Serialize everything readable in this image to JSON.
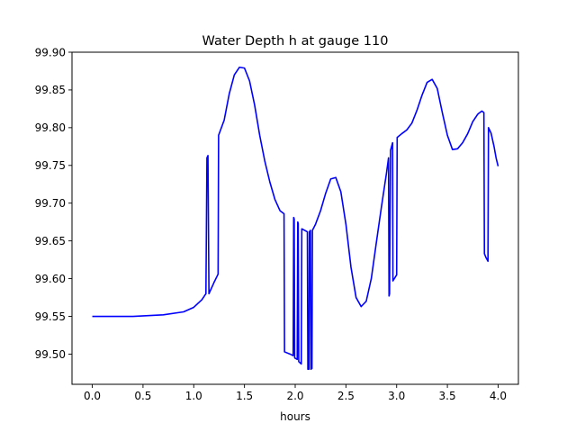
{
  "chart_data": {
    "type": "line",
    "title": "Water Depth h at gauge 110",
    "xlabel": "hours",
    "ylabel": "",
    "xlim": [
      -0.2,
      4.2
    ],
    "ylim": [
      99.46,
      99.9
    ],
    "xticks": [
      0.0,
      0.5,
      1.0,
      1.5,
      2.0,
      2.5,
      3.0,
      3.5,
      4.0
    ],
    "xtick_labels": [
      "0.0",
      "0.5",
      "1.0",
      "1.5",
      "2.0",
      "2.5",
      "3.0",
      "3.5",
      "4.0"
    ],
    "yticks": [
      99.5,
      99.55,
      99.6,
      99.65,
      99.7,
      99.75,
      99.8,
      99.85,
      99.9
    ],
    "ytick_labels": [
      "99.50",
      "99.55",
      "99.60",
      "99.65",
      "99.70",
      "99.75",
      "99.80",
      "99.85",
      "99.90"
    ],
    "grid": false,
    "legend": "none",
    "series": [
      {
        "color": "#0000ff",
        "points": [
          [
            0.0,
            99.55
          ],
          [
            0.4,
            99.55
          ],
          [
            0.7,
            99.552
          ],
          [
            0.9,
            99.556
          ],
          [
            1.0,
            99.562
          ],
          [
            1.08,
            99.572
          ],
          [
            1.12,
            99.58
          ],
          [
            1.13,
            99.76
          ],
          [
            1.14,
            99.763
          ],
          [
            1.15,
            99.58
          ],
          [
            1.2,
            99.595
          ],
          [
            1.24,
            99.606
          ],
          [
            1.245,
            99.79
          ],
          [
            1.3,
            99.81
          ],
          [
            1.35,
            99.845
          ],
          [
            1.4,
            99.87
          ],
          [
            1.45,
            99.88
          ],
          [
            1.5,
            99.879
          ],
          [
            1.55,
            99.862
          ],
          [
            1.6,
            99.83
          ],
          [
            1.65,
            99.79
          ],
          [
            1.7,
            99.756
          ],
          [
            1.75,
            99.728
          ],
          [
            1.8,
            99.705
          ],
          [
            1.85,
            99.69
          ],
          [
            1.89,
            99.686
          ],
          [
            1.895,
            99.503
          ],
          [
            1.95,
            99.5
          ],
          [
            1.98,
            99.498
          ],
          [
            1.985,
            99.681
          ],
          [
            1.99,
            99.679
          ],
          [
            1.995,
            99.495
          ],
          [
            2.02,
            99.493
          ],
          [
            2.025,
            99.675
          ],
          [
            2.03,
            99.673
          ],
          [
            2.035,
            99.49
          ],
          [
            2.06,
            99.487
          ],
          [
            2.065,
            99.666
          ],
          [
            2.12,
            99.662
          ],
          [
            2.125,
            99.48
          ],
          [
            2.135,
            99.48
          ],
          [
            2.14,
            99.662
          ],
          [
            2.15,
            99.664
          ],
          [
            2.155,
            99.48
          ],
          [
            2.165,
            99.481
          ],
          [
            2.17,
            99.664
          ],
          [
            2.2,
            99.672
          ],
          [
            2.25,
            99.69
          ],
          [
            2.3,
            99.713
          ],
          [
            2.35,
            99.732
          ],
          [
            2.4,
            99.734
          ],
          [
            2.45,
            99.715
          ],
          [
            2.5,
            99.672
          ],
          [
            2.55,
            99.615
          ],
          [
            2.6,
            99.575
          ],
          [
            2.65,
            99.563
          ],
          [
            2.7,
            99.57
          ],
          [
            2.75,
            99.6
          ],
          [
            2.8,
            99.648
          ],
          [
            2.85,
            99.695
          ],
          [
            2.9,
            99.74
          ],
          [
            2.92,
            99.76
          ],
          [
            2.925,
            99.577
          ],
          [
            2.93,
            99.58
          ],
          [
            2.94,
            99.77
          ],
          [
            2.96,
            99.78
          ],
          [
            2.963,
            99.597
          ],
          [
            3.0,
            99.605
          ],
          [
            3.005,
            99.787
          ],
          [
            3.05,
            99.792
          ],
          [
            3.1,
            99.797
          ],
          [
            3.15,
            99.806
          ],
          [
            3.2,
            99.823
          ],
          [
            3.25,
            99.843
          ],
          [
            3.3,
            99.86
          ],
          [
            3.35,
            99.864
          ],
          [
            3.4,
            99.852
          ],
          [
            3.45,
            99.82
          ],
          [
            3.5,
            99.79
          ],
          [
            3.55,
            99.771
          ],
          [
            3.6,
            99.772
          ],
          [
            3.65,
            99.78
          ],
          [
            3.7,
            99.792
          ],
          [
            3.75,
            99.808
          ],
          [
            3.8,
            99.818
          ],
          [
            3.84,
            99.822
          ],
          [
            3.86,
            99.82
          ],
          [
            3.865,
            99.633
          ],
          [
            3.88,
            99.628
          ],
          [
            3.9,
            99.623
          ],
          [
            3.905,
            99.8
          ],
          [
            3.93,
            99.793
          ],
          [
            3.96,
            99.775
          ],
          [
            3.98,
            99.76
          ],
          [
            4.0,
            99.749
          ]
        ]
      }
    ]
  }
}
